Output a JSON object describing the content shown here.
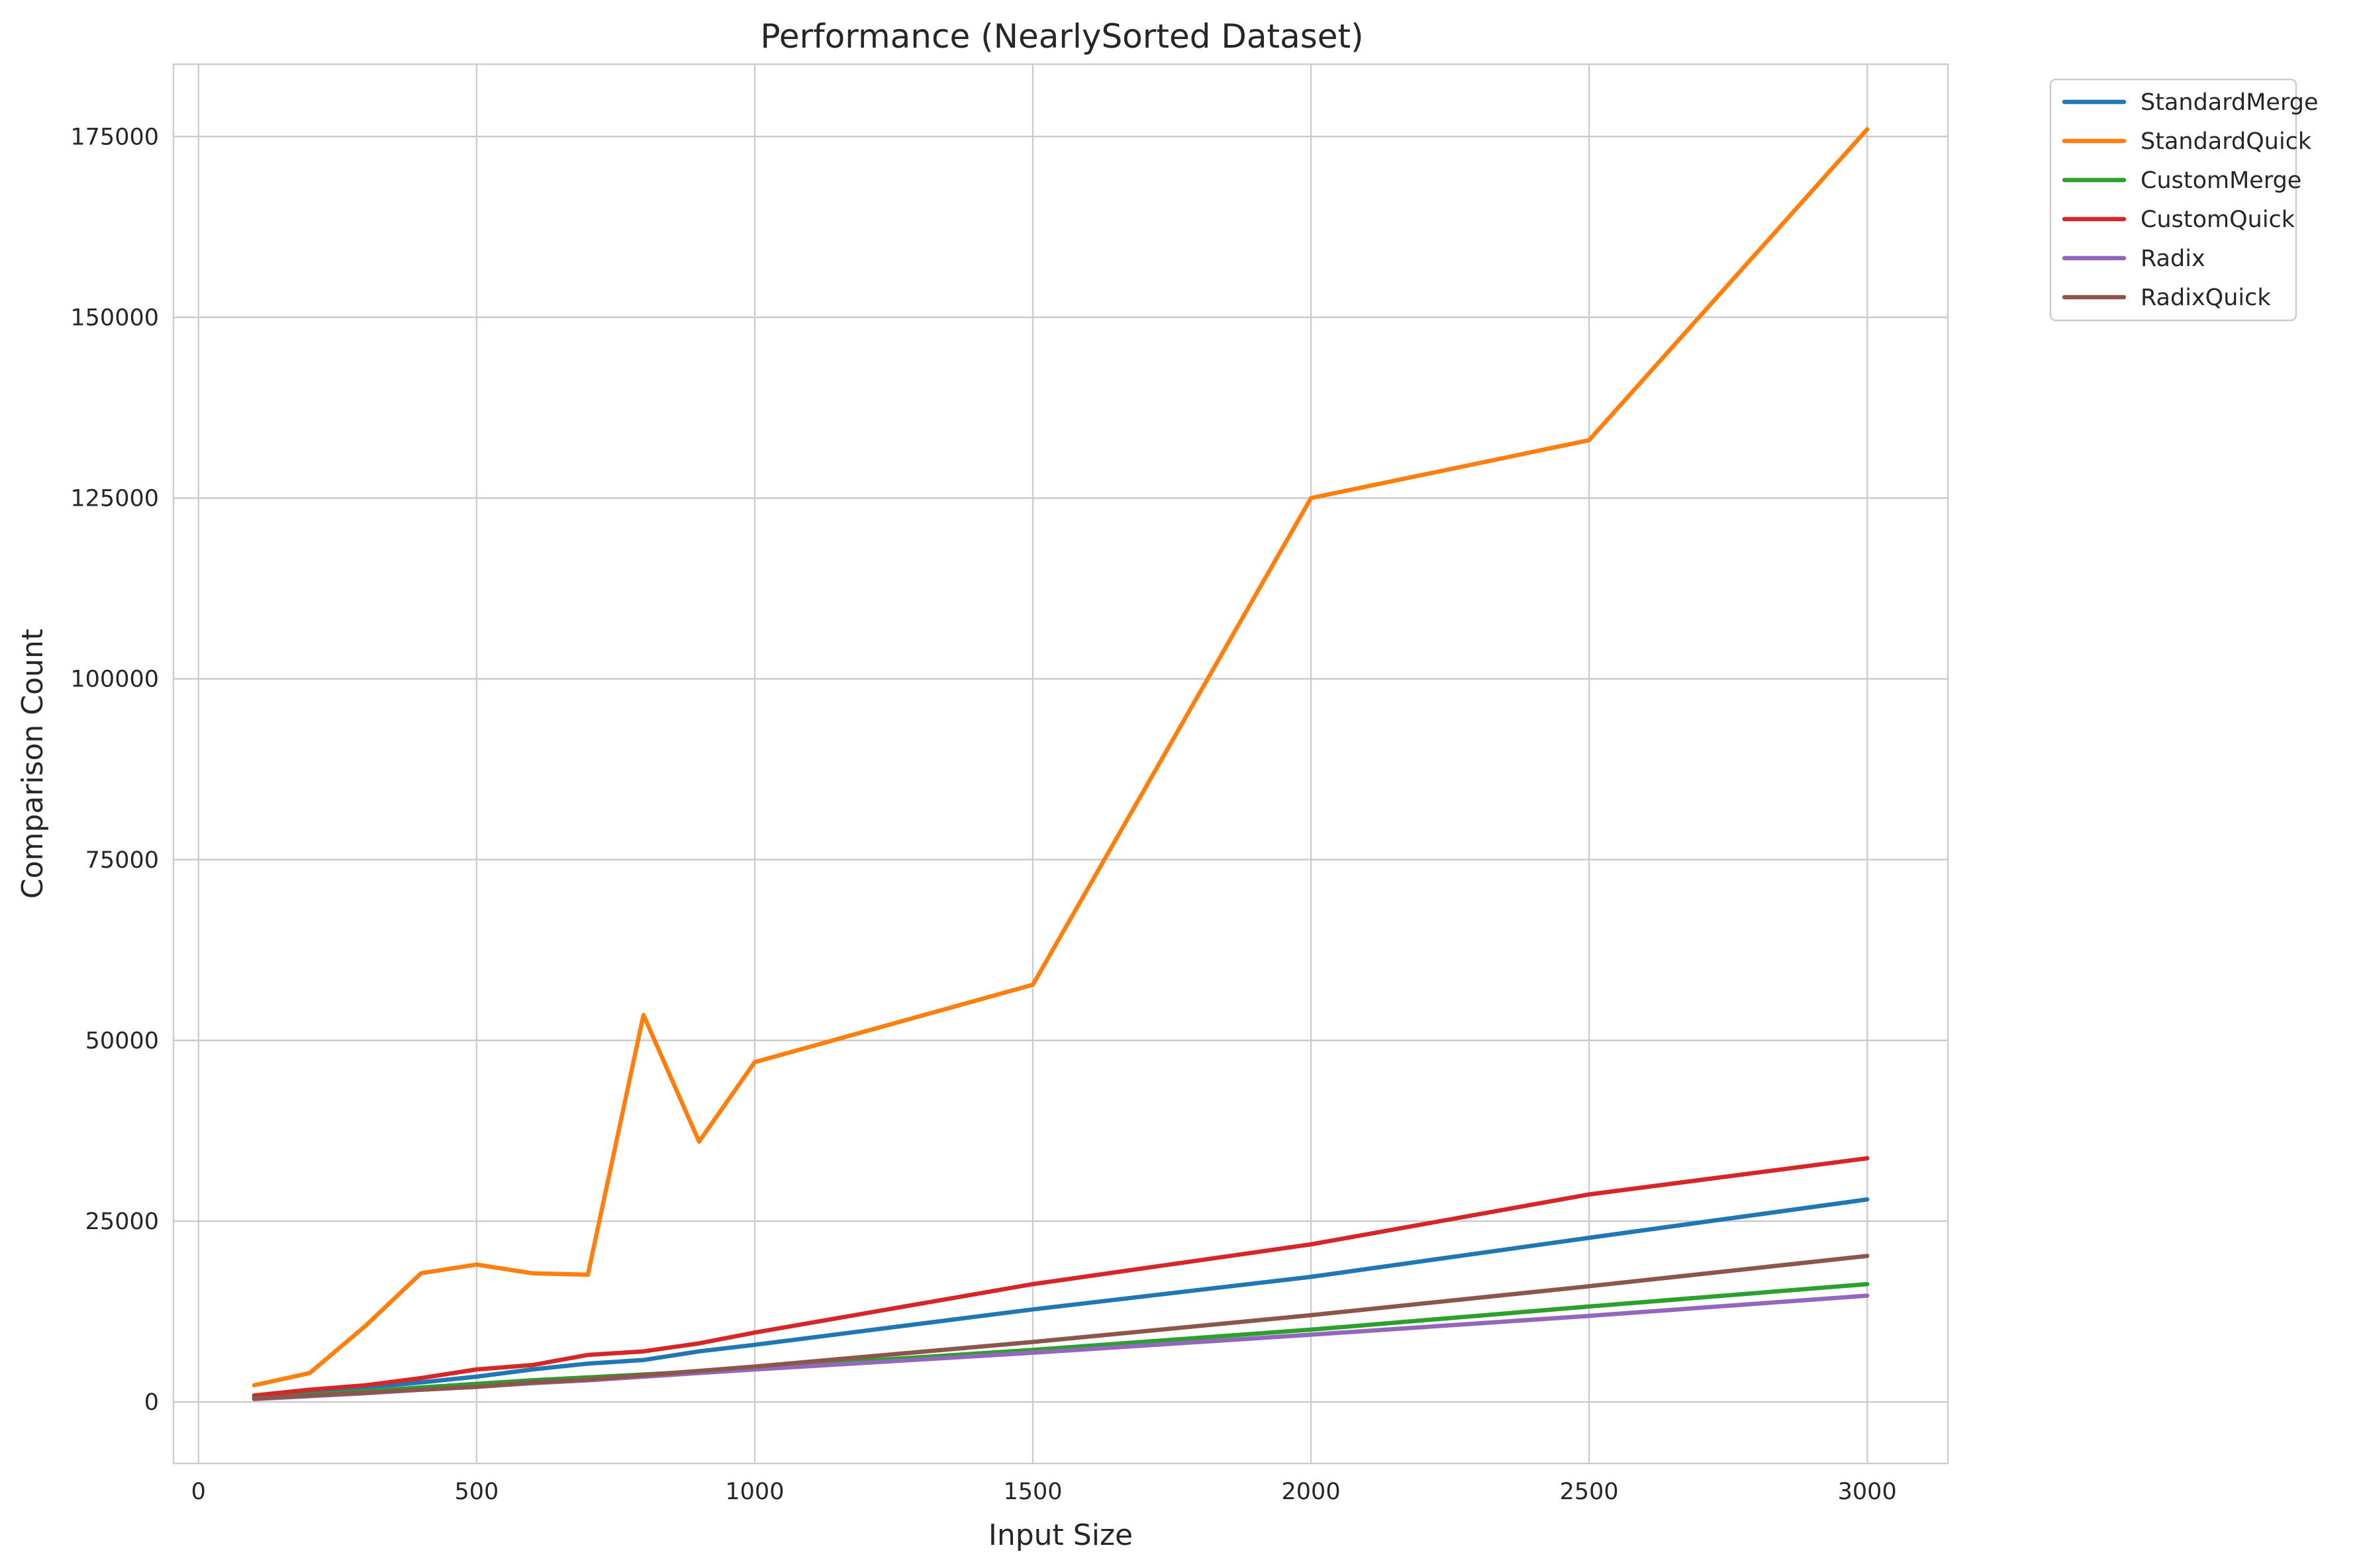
{
  "chart_data": {
    "type": "line",
    "title": "Performance (NearlySorted Dataset)",
    "xlabel": "Input Size",
    "ylabel": "Comparison Count",
    "x": [
      100,
      200,
      300,
      400,
      500,
      600,
      700,
      800,
      900,
      1000,
      1500,
      2000,
      2500,
      3000
    ],
    "xlim": [
      -45,
      3145
    ],
    "ylim": [
      -8500,
      185000
    ],
    "xticks": [
      0,
      500,
      1000,
      1500,
      2000,
      2500,
      3000
    ],
    "xtick_labels": [
      "0",
      "500",
      "1000",
      "1500",
      "2000",
      "2500",
      "3000"
    ],
    "yticks": [
      0,
      25000,
      50000,
      75000,
      100000,
      125000,
      150000,
      175000
    ],
    "ytick_labels": [
      "0",
      "25000",
      "50000",
      "75000",
      "100000",
      "125000",
      "150000",
      "175000"
    ],
    "grid": true,
    "legend_position": "outside-top-right",
    "series": [
      {
        "name": "StandardMerge",
        "color": "#1f77b4",
        "values": [
          550,
          1300,
          2000,
          2700,
          3500,
          4500,
          5300,
          5800,
          7000,
          7900,
          12800,
          17300,
          22700,
          28000
        ]
      },
      {
        "name": "StandardQuick",
        "color": "#ff7f0e",
        "values": [
          2300,
          4000,
          10500,
          17800,
          19000,
          17800,
          17600,
          53500,
          36000,
          47000,
          57700,
          125000,
          133000,
          176000
        ]
      },
      {
        "name": "CustomMerge",
        "color": "#2ca02c",
        "values": [
          500,
          1000,
          1500,
          2000,
          2500,
          3000,
          3400,
          3800,
          4200,
          4700,
          7200,
          10000,
          13200,
          16300
        ]
      },
      {
        "name": "CustomQuick",
        "color": "#d62728",
        "values": [
          900,
          1700,
          2300,
          3300,
          4500,
          5100,
          6500,
          7000,
          8100,
          9600,
          16300,
          21800,
          28700,
          33700
        ]
      },
      {
        "name": "Radix",
        "color": "#9467bd",
        "values": [
          400,
          800,
          1200,
          1700,
          2100,
          2600,
          3000,
          3500,
          4000,
          4500,
          6800,
          9300,
          11900,
          14700
        ]
      },
      {
        "name": "RadixQuick",
        "color": "#8c564b",
        "values": [
          500,
          900,
          1300,
          1700,
          2100,
          2700,
          3100,
          3700,
          4300,
          4900,
          8300,
          12000,
          16000,
          20200
        ]
      }
    ]
  }
}
